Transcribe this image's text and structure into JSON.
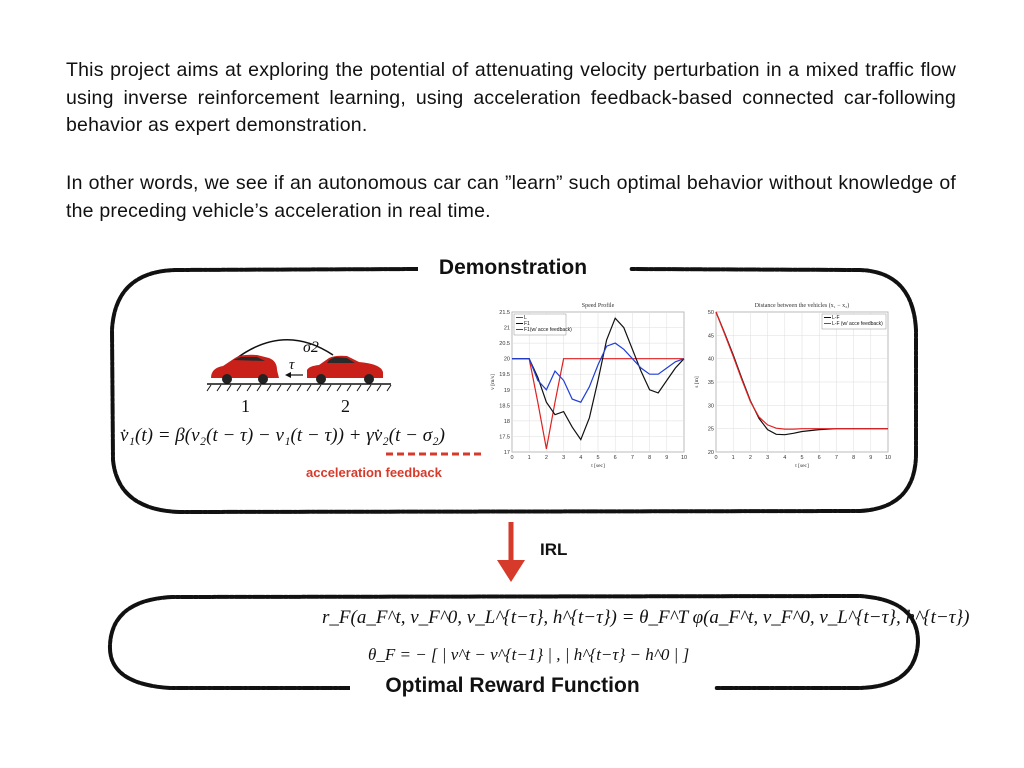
{
  "intro": {
    "paragraph1": "This project aims at exploring the potential of attenuating velocity perturbation in a mixed traffic flow using inverse reinforcement learning, using acceleration feedback-based connected car-following behavior as expert demonstration.",
    "paragraph2": "In other words, we see if an autonomous car can ”learn” such optimal behavior without knowledge of the preceding vehicle’s acceleration in real time."
  },
  "demonstration": {
    "title": "Demonstration",
    "diagram": {
      "sigma_label": "σ2",
      "tau_label": "τ",
      "car1_label": "1",
      "car2_label": "2"
    },
    "equation": "v̇₁(t) = β(v₂(t − τ) − v₁(t − τ)) + γv̇₂(t − σ₂)",
    "feedback_label": "acceleration feedback"
  },
  "arrow": {
    "label": "IRL",
    "color": "#d63a2a"
  },
  "reward": {
    "title": "Optimal Reward Function",
    "equation1": "r_F(a_F^t, v_F^0, v_L^{t−τ}, h^{t−τ}) = θ_F^T φ(a_F^t, v_F^0, v_L^{t−τ}, h^{t−τ})",
    "equation2": "θ_F = − [ | v^t − v^{t−1} | , | h^{t−τ} − h^0 | ]"
  },
  "chart_data": [
    {
      "type": "line",
      "title": "Speed Profile",
      "xlabel": "t [sec]",
      "ylabel": "v [m/s]",
      "xlim": [
        0,
        10
      ],
      "ylim": [
        17,
        21.5
      ],
      "xticks": [
        0,
        1,
        2,
        3,
        4,
        5,
        6,
        7,
        8,
        9,
        10
      ],
      "yticks": [
        17,
        17.5,
        18,
        18.5,
        19,
        19.5,
        20,
        20.5,
        21,
        21.5
      ],
      "grid": true,
      "legend_position": "top-left",
      "series": [
        {
          "name": "L",
          "color": "#e02020",
          "x": [
            0,
            1,
            1.5,
            2,
            2.5,
            3,
            10
          ],
          "y": [
            20,
            20,
            18.6,
            17.1,
            18.6,
            20,
            20
          ]
        },
        {
          "name": "F1",
          "color": "#111111",
          "x": [
            0,
            1,
            1.5,
            2,
            2.5,
            3,
            3.5,
            4,
            4.5,
            5,
            5.5,
            6,
            6.5,
            7,
            7.5,
            8,
            8.5,
            9,
            9.5,
            10
          ],
          "y": [
            20,
            20,
            19.4,
            18.6,
            18.2,
            18.3,
            17.8,
            17.4,
            18.1,
            19.3,
            20.6,
            21.3,
            21.0,
            20.3,
            19.6,
            19.0,
            18.9,
            19.3,
            19.7,
            20.0
          ]
        },
        {
          "name": "F1(w/ acce feedback)",
          "color": "#1f3fd8",
          "x": [
            0,
            1,
            1.5,
            2,
            2.5,
            3,
            3.5,
            4,
            4.5,
            5,
            5.5,
            6,
            6.5,
            7,
            7.5,
            8,
            8.5,
            9,
            9.5,
            10
          ],
          "y": [
            20,
            20,
            19.3,
            19.0,
            19.6,
            19.3,
            18.7,
            18.6,
            19.1,
            19.8,
            20.4,
            20.5,
            20.3,
            20.0,
            19.7,
            19.5,
            19.5,
            19.7,
            19.9,
            20.0
          ]
        }
      ]
    },
    {
      "type": "line",
      "title": "Distance between the vehicles (x₁ − x₂)",
      "xlabel": "t [sec]",
      "ylabel": "s [m]",
      "xlim": [
        0,
        10
      ],
      "ylim": [
        20,
        50
      ],
      "xticks": [
        0,
        1,
        2,
        3,
        4,
        5,
        6,
        7,
        8,
        9,
        10
      ],
      "yticks": [
        20,
        25,
        30,
        35,
        40,
        45,
        50
      ],
      "grid": true,
      "legend_position": "top-right",
      "series": [
        {
          "name": "L-F",
          "color": "#111111",
          "x": [
            0,
            0.5,
            1,
            1.5,
            2,
            2.5,
            3,
            3.5,
            4,
            4.5,
            5,
            6,
            7,
            8,
            9,
            10
          ],
          "y": [
            50,
            45.5,
            40.8,
            35.8,
            31.0,
            27.2,
            24.8,
            23.8,
            23.7,
            24.0,
            24.4,
            24.8,
            25.0,
            25.0,
            25.0,
            25.0
          ]
        },
        {
          "name": "L-F (w/ acce feedback)",
          "color": "#e02020",
          "x": [
            0,
            0.5,
            1,
            1.5,
            2,
            2.5,
            3,
            3.5,
            4,
            4.5,
            5,
            6,
            7,
            8,
            9,
            10
          ],
          "y": [
            50,
            45.3,
            40.5,
            35.5,
            30.8,
            27.5,
            25.8,
            25.1,
            24.9,
            24.9,
            25.0,
            25.0,
            25.0,
            25.0,
            25.0,
            25.0
          ]
        }
      ]
    }
  ]
}
